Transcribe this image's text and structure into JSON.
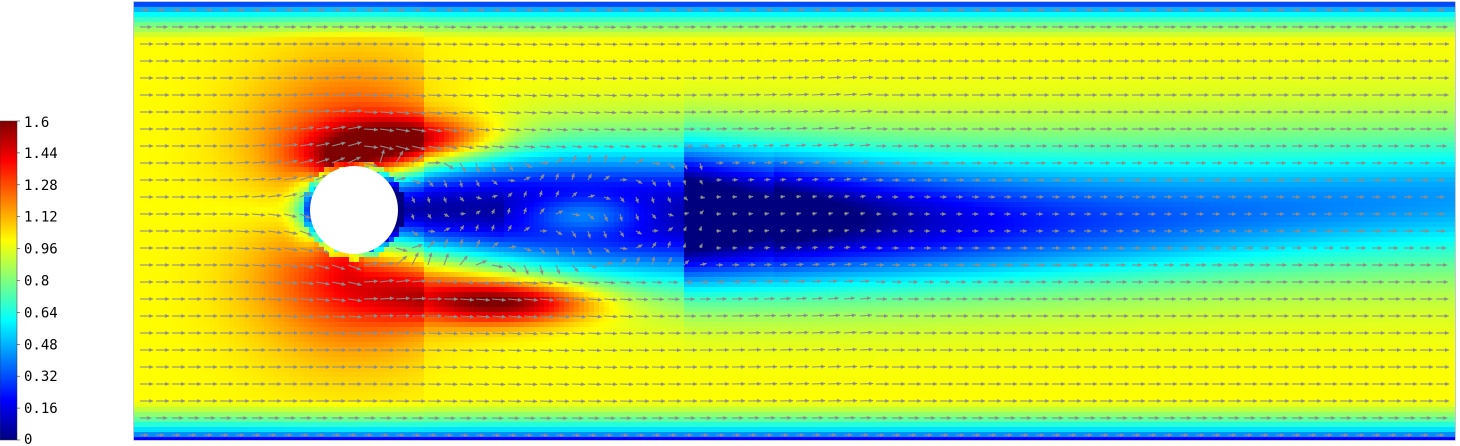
{
  "chart_data": {
    "type": "heatmap",
    "colorbar": {
      "min": 0,
      "max": 1.6,
      "tick_labels": [
        "1.6",
        "1.44",
        "1.28",
        "1.12",
        "0.96",
        "0.8",
        "0.64",
        "0.48",
        "0.32",
        "0.16",
        "0"
      ],
      "tick_values": [
        1.6,
        1.44,
        1.28,
        1.12,
        0.96,
        0.8,
        0.64,
        0.48,
        0.32,
        0.16,
        0
      ],
      "colormap": [
        "#00007f",
        "#0000ff",
        "#007fff",
        "#00ffff",
        "#7fff7f",
        "#ffff00",
        "#ff7f00",
        "#ff0000",
        "#7f0000"
      ]
    },
    "field": {
      "inflow_speed": 1.0,
      "obstacle": "circle",
      "wake_min_speed": 0.1,
      "upper_shear_peak": 1.35,
      "lower_shear_peak": 1.5
    },
    "vector_color": "#8c8c8c",
    "obstacle_color": "#ffffff",
    "grid": false,
    "legend": "left"
  }
}
